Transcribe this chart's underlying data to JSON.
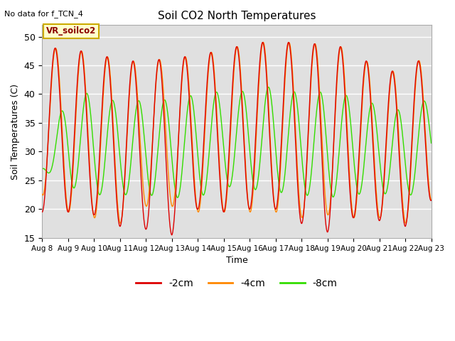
{
  "title": "Soil CO2 North Temperatures",
  "top_left_text": "No data for f_TCN_4",
  "legend_box_text": "VR_soilco2",
  "xlabel": "Time",
  "ylabel": "Soil Temperatures (C)",
  "ylim": [
    15,
    52
  ],
  "yticks": [
    15,
    20,
    25,
    30,
    35,
    40,
    45,
    50
  ],
  "x_labels": [
    "Aug 8",
    "Aug 9",
    "Aug 10",
    "Aug 11",
    "Aug 12",
    "Aug 13",
    "Aug 14",
    "Aug 15",
    "Aug 16",
    "Aug 17",
    "Aug 18",
    "Aug 19",
    "Aug 20",
    "Aug 21",
    "Aug 22",
    "Aug 23"
  ],
  "color_2cm": "#dd0000",
  "color_4cm": "#ff8800",
  "color_8cm": "#33dd00",
  "line_width": 1.0,
  "fig_bg_color": "#ffffff",
  "plot_bg_color": "#e0e0e0",
  "legend_entries": [
    "-2cm",
    "-4cm",
    "-8cm"
  ],
  "peaks_2cm": [
    48.0,
    48.0,
    47.0,
    46.0,
    45.5,
    46.5,
    46.5,
    48.0,
    48.5,
    49.5,
    48.5,
    49.0,
    47.5,
    44.0,
    44.0,
    47.5
  ],
  "troughs_2cm": [
    19.5,
    19.5,
    19.0,
    17.0,
    16.5,
    15.5,
    20.0,
    19.5,
    20.0,
    20.0,
    17.5,
    16.0,
    18.5,
    18.0,
    17.0,
    21.5
  ],
  "peaks_4cm": [
    48.0,
    48.0,
    47.0,
    46.0,
    45.5,
    46.5,
    46.5,
    48.0,
    48.5,
    49.5,
    48.5,
    49.0,
    47.5,
    44.0,
    44.0,
    47.5
  ],
  "troughs_4cm": [
    22.5,
    19.5,
    18.5,
    17.5,
    20.5,
    20.5,
    19.5,
    19.5,
    19.5,
    19.5,
    18.5,
    19.0,
    18.5,
    18.5,
    17.5,
    21.5
  ],
  "peaks_8cm": [
    27.0,
    40.5,
    40.0,
    38.5,
    39.0,
    39.0,
    40.0,
    40.5,
    40.5,
    41.5,
    40.0,
    40.5,
    39.5,
    38.0,
    37.0,
    39.5
  ],
  "troughs_8cm": [
    27.0,
    24.0,
    22.5,
    22.5,
    22.5,
    22.0,
    22.0,
    24.0,
    23.5,
    23.0,
    22.5,
    22.0,
    22.5,
    23.0,
    21.5,
    26.0
  ],
  "phase_2cm": 0.0,
  "phase_4cm": 0.02,
  "phase_8cm": 0.22,
  "num_points": 4000,
  "num_days": 15
}
